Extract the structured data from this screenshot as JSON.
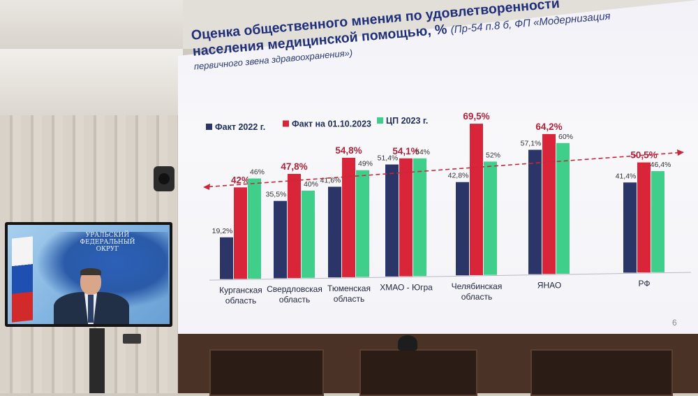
{
  "slide": {
    "title_line1": "Оценка общественного мнения по удовлетворенности",
    "title_line2": "населения медицинской помощью, %",
    "title_ref": "(Пр-54 п.8 б, ФП «Модернизация",
    "title_ref_cont": "первичного звена здравоохранения»)",
    "page_number": "6"
  },
  "video_call": {
    "map_caption": "УРАЛЬСКИЙ ФЕДЕРАЛЬНЫЙ ОКРУГ"
  },
  "chart_data": {
    "type": "bar",
    "categories": [
      "Курганская область",
      "Свердловская область",
      "Тюменская область",
      "ХМАО - Югра",
      "Челябинская область",
      "ЯНАО",
      "РФ"
    ],
    "series": [
      {
        "name": "Факт 2022 г.",
        "color": "#2b3568",
        "values": [
          19.2,
          35.5,
          41.6,
          51.4,
          42.8,
          57.1,
          41.4
        ],
        "labels": [
          "19,2%",
          "35,5%",
          "41,6%",
          "51,4%",
          "42,8%",
          "57,1%",
          "41,4%"
        ]
      },
      {
        "name": "Факт на 01.10.2023",
        "color": "#d9253a",
        "values": [
          42,
          47.8,
          54.8,
          54.1,
          69.5,
          64.2,
          50.5
        ],
        "labels": [
          "42%",
          "47,8%",
          "54,8%",
          "54,1%",
          "69,5%",
          "64,2%",
          "50,5%"
        ]
      },
      {
        "name": "ЦП 2023 г.",
        "color": "#3fcf8a",
        "values": [
          46,
          40,
          49,
          54,
          52,
          60,
          46.4
        ],
        "labels": [
          "46%",
          "40%",
          "49%",
          "54%",
          "52%",
          "60%",
          "46,4%"
        ]
      }
    ],
    "ylim": [
      0,
      75
    ],
    "grid": false,
    "legend_position": "top-left",
    "trend_arrow": "dashed red, bidirectional",
    "label_color_highlight": "#b0233a"
  }
}
